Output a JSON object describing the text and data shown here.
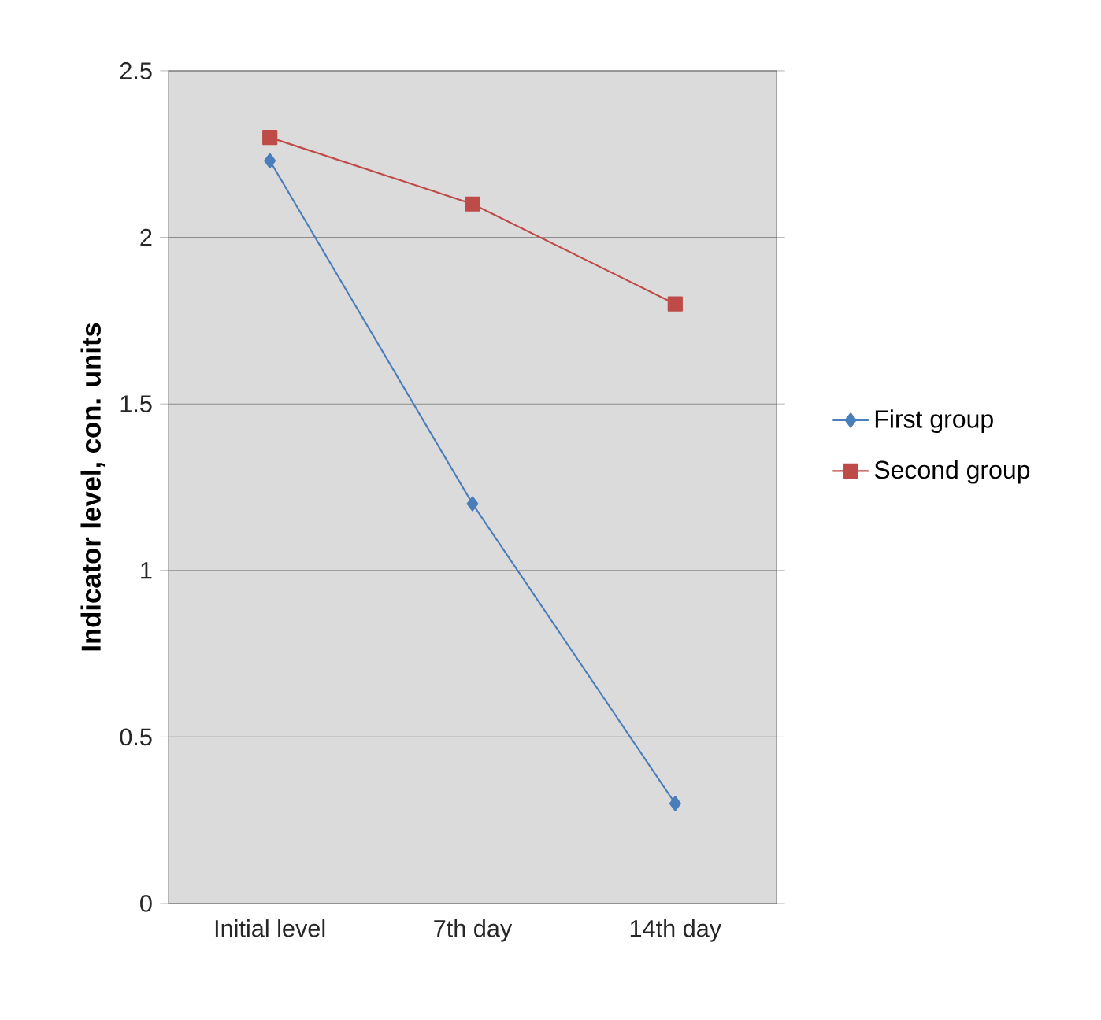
{
  "chart_data": {
    "type": "line",
    "ylabel": "Indicator level, con. units",
    "categories": [
      "Initial level",
      "7th day",
      "14th day"
    ],
    "series": [
      {
        "name": "First group",
        "color": "#4a7ebb",
        "marker": "diamond",
        "values": [
          2.23,
          1.2,
          0.3
        ]
      },
      {
        "name": "Second group",
        "color": "#be4b48",
        "marker": "square",
        "values": [
          2.3,
          2.1,
          1.8
        ]
      }
    ],
    "ylim": [
      0,
      2.5
    ],
    "yticks": [
      0,
      0.5,
      1,
      1.5,
      2,
      2.5
    ],
    "grid": "y",
    "legend": "right"
  }
}
